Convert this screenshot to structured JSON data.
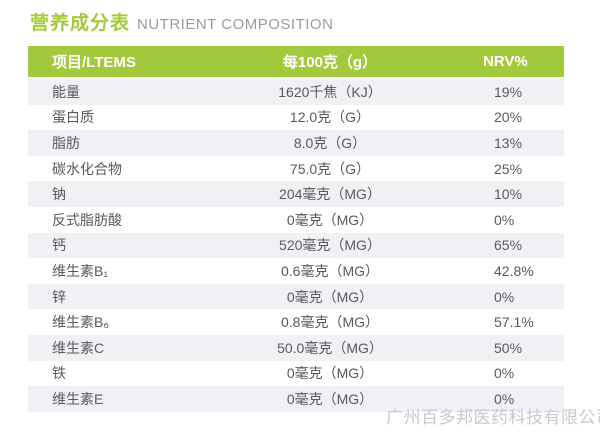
{
  "title": {
    "zh": "营养成分表",
    "en": "NUTRIENT COMPOSITION"
  },
  "colors": {
    "green": "#a3c93c",
    "row_alt": "#f1f1f5",
    "text": "#58595b",
    "muted": "#9b9b9b",
    "watermark": "#c9c9cd"
  },
  "table": {
    "headers": [
      "项目/LTEMS",
      "每100克（g）",
      "NRV%"
    ],
    "rows": [
      {
        "item": "能量",
        "per100g": "1620千焦（KJ）",
        "nrv": "19%"
      },
      {
        "item": "蛋白质",
        "per100g": "12.0克（G）",
        "nrv": "20%"
      },
      {
        "item": "脂肪",
        "per100g": "8.0克（G）",
        "nrv": "13%"
      },
      {
        "item": "碳水化合物",
        "per100g": "75.0克（G）",
        "nrv": "25%"
      },
      {
        "item": "钠",
        "per100g": "204毫克（MG）",
        "nrv": "10%"
      },
      {
        "item": "反式脂肪酸",
        "per100g": "0毫克（MG）",
        "nrv": "0%"
      },
      {
        "item": "钙",
        "per100g": "520毫克（MG）",
        "nrv": "65%"
      },
      {
        "item": "维生素B₁",
        "per100g": "0.6毫克（MG）",
        "nrv": "42.8%"
      },
      {
        "item": "锌",
        "per100g": "0毫克（MG）",
        "nrv": "0%"
      },
      {
        "item": "维生素B₆",
        "per100g": "0.8毫克（MG）",
        "nrv": "57.1%"
      },
      {
        "item": "维生素C",
        "per100g": "50.0毫克（MG）",
        "nrv": "50%"
      },
      {
        "item": "铁",
        "per100g": "0毫克（MG）",
        "nrv": "0%"
      },
      {
        "item": "维生素E",
        "per100g": "0毫克（MG）",
        "nrv": "0%"
      }
    ]
  },
  "watermark": "广州百多邦医药科技有限公司"
}
